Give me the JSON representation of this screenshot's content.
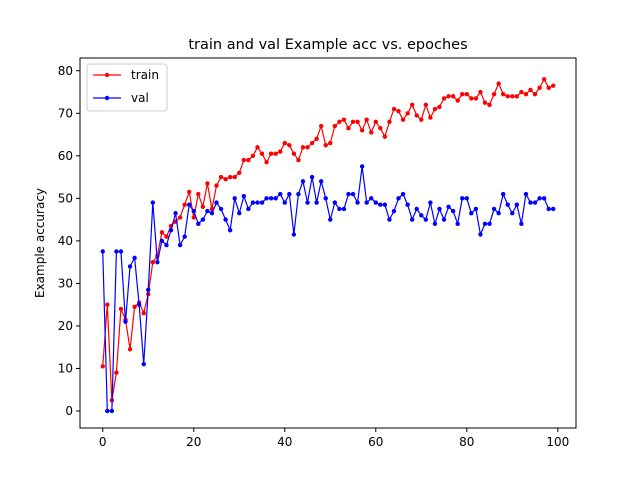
{
  "chart_data": {
    "type": "line",
    "title": "train and val Example acc vs. epoches",
    "xlabel": "",
    "ylabel": "Example accuracy",
    "xlim": [
      -5,
      104
    ],
    "ylim": [
      -4,
      83
    ],
    "xticks": [
      0,
      20,
      40,
      60,
      80,
      100
    ],
    "yticks": [
      0,
      10,
      20,
      30,
      40,
      50,
      60,
      70,
      80
    ],
    "grid": false,
    "legend_position": "top-left",
    "x": [
      0,
      1,
      2,
      3,
      4,
      5,
      6,
      7,
      8,
      9,
      10,
      11,
      12,
      13,
      14,
      15,
      16,
      17,
      18,
      19,
      20,
      21,
      22,
      23,
      24,
      25,
      26,
      27,
      28,
      29,
      30,
      31,
      32,
      33,
      34,
      35,
      36,
      37,
      38,
      39,
      40,
      41,
      42,
      43,
      44,
      45,
      46,
      47,
      48,
      49,
      50,
      51,
      52,
      53,
      54,
      55,
      56,
      57,
      58,
      59,
      60,
      61,
      62,
      63,
      64,
      65,
      66,
      67,
      68,
      69,
      70,
      71,
      72,
      73,
      74,
      75,
      76,
      77,
      78,
      79,
      80,
      81,
      82,
      83,
      84,
      85,
      86,
      87,
      88,
      89,
      90,
      91,
      92,
      93,
      94,
      95,
      96,
      97,
      98,
      99
    ],
    "series": [
      {
        "name": "train",
        "color": "#ff0000",
        "values": [
          10.5,
          25.0,
          2.5,
          9.0,
          24.0,
          21.5,
          14.5,
          24.5,
          25.5,
          23.0,
          27.5,
          35.0,
          36.5,
          42.0,
          41.0,
          43.5,
          44.5,
          45.5,
          48.5,
          51.5,
          45.5,
          51.0,
          48.0,
          53.5,
          47.5,
          53.0,
          55.0,
          54.5,
          55.0,
          55.0,
          56.0,
          59.0,
          59.0,
          60.0,
          62.0,
          60.5,
          58.5,
          60.5,
          60.5,
          61.0,
          63.0,
          62.5,
          60.5,
          59.0,
          62.0,
          62.0,
          63.0,
          64.0,
          67.0,
          62.5,
          63.0,
          67.0,
          68.0,
          68.5,
          66.5,
          68.0,
          68.0,
          66.0,
          68.5,
          65.5,
          68.0,
          66.5,
          64.5,
          68.0,
          71.0,
          70.5,
          68.5,
          70.0,
          72.0,
          69.5,
          68.5,
          72.0,
          69.0,
          71.0,
          71.5,
          73.5,
          74.0,
          74.0,
          73.0,
          74.5,
          74.5,
          73.5,
          73.5,
          75.0,
          72.5,
          72.0,
          74.5,
          77.0,
          74.5,
          74.0,
          74.0,
          74.0,
          75.0,
          74.5,
          75.5,
          74.5,
          76.0,
          78.0,
          76.0,
          76.5
        ]
      },
      {
        "name": "val",
        "color": "#0000ff",
        "values": [
          37.5,
          0.0,
          0.0,
          37.5,
          37.5,
          21.0,
          34.0,
          36.0,
          25.0,
          11.0,
          28.5,
          49.0,
          35.0,
          40.0,
          39.0,
          42.5,
          46.5,
          39.0,
          41.0,
          48.5,
          47.0,
          44.0,
          45.0,
          47.0,
          46.5,
          49.0,
          47.5,
          45.0,
          42.5,
          50.0,
          46.5,
          50.5,
          47.5,
          49.0,
          49.0,
          49.0,
          50.0,
          50.0,
          50.0,
          51.0,
          49.0,
          51.0,
          41.5,
          51.0,
          54.0,
          49.0,
          55.0,
          49.0,
          54.0,
          50.0,
          45.0,
          49.0,
          47.5,
          47.5,
          51.0,
          51.0,
          49.0,
          57.5,
          49.0,
          50.0,
          49.0,
          48.5,
          48.5,
          45.0,
          47.0,
          50.0,
          51.0,
          48.5,
          45.0,
          47.5,
          46.0,
          45.0,
          49.0,
          44.0,
          47.5,
          45.0,
          48.0,
          47.0,
          44.0,
          50.0,
          50.0,
          46.5,
          47.5,
          41.5,
          44.0,
          44.0,
          47.5,
          46.5,
          51.0,
          48.5,
          46.5,
          48.5,
          44.0,
          51.0,
          49.0,
          49.0,
          50.0,
          50.0,
          47.5,
          47.5
        ]
      }
    ]
  }
}
